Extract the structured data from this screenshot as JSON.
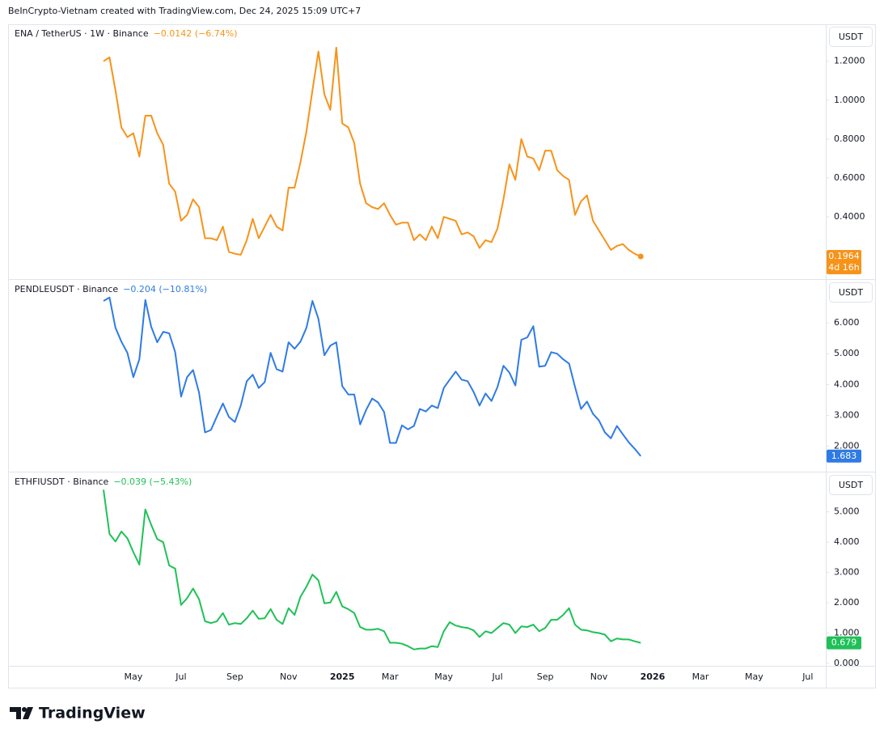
{
  "header": {
    "attribution": "BeInCrypto-Vietnam created with TradingView.com, Dec 24, 2025 15:09 UTC+7"
  },
  "footer": {
    "brand": "TradingView"
  },
  "chart_data": [
    {
      "type": "line",
      "title": "ENA / TetherUS · 1W · Binance",
      "change": "−0.0142 (−6.74%)",
      "unit": "USDT",
      "countdown": "4d 16h",
      "ylim": [
        0.08,
        1.39
      ],
      "yticks": [
        {
          "value": 0.4,
          "label": "0.4000"
        },
        {
          "value": 0.6,
          "label": "0.6000"
        },
        {
          "value": 0.8,
          "label": "0.8000"
        },
        {
          "value": 1.0,
          "label": "1.0000"
        },
        {
          "value": 1.2,
          "label": "1.2000"
        }
      ],
      "categories": [
        null,
        null,
        null,
        null,
        null,
        "May",
        null,
        null,
        null,
        null,
        null,
        null,
        null,
        "Jul",
        null,
        null,
        null,
        null,
        null,
        null,
        null,
        null,
        "Sep",
        null,
        null,
        null,
        null,
        null,
        null,
        null,
        null,
        "Nov",
        null,
        null,
        null,
        null,
        null,
        null,
        null,
        null,
        "2025",
        null,
        null,
        null,
        null,
        null,
        null,
        null,
        "Mar",
        null,
        null,
        null,
        null,
        null,
        null,
        null,
        null,
        "May",
        null,
        null,
        null,
        null,
        null,
        null,
        null,
        null,
        "Jul",
        null,
        null,
        null,
        null,
        null,
        null,
        null,
        "Sep",
        null,
        null,
        null,
        null,
        null,
        null,
        null,
        null,
        "Nov",
        null,
        null,
        null,
        null,
        null,
        null,
        null,
        null,
        "2026",
        null,
        null,
        null,
        null,
        null,
        null,
        null,
        "Mar",
        null,
        null,
        null,
        null,
        null,
        null,
        null,
        null,
        "May",
        null,
        null,
        null,
        null,
        null,
        null,
        null,
        null,
        "Jul",
        null,
        null,
        null
      ],
      "series": [
        {
          "color": "#f7931a",
          "values": [
            1.2,
            1.22,
            1.05,
            0.86,
            0.81,
            0.83,
            0.71,
            0.92,
            0.92,
            0.83,
            0.77,
            0.57,
            0.53,
            0.38,
            0.41,
            0.49,
            0.45,
            0.29,
            0.29,
            0.28,
            0.35,
            0.22,
            0.21,
            0.205,
            0.28,
            0.39,
            0.29,
            0.35,
            0.41,
            0.35,
            0.33,
            0.55,
            0.55,
            0.68,
            0.84,
            1.05,
            1.25,
            1.03,
            0.95,
            1.27,
            0.88,
            0.86,
            0.78,
            0.57,
            0.47,
            0.45,
            0.44,
            0.47,
            0.41,
            0.36,
            0.37,
            0.37,
            0.28,
            0.31,
            0.28,
            0.35,
            0.29,
            0.4,
            0.39,
            0.38,
            0.31,
            0.32,
            0.3,
            0.24,
            0.28,
            0.27,
            0.34,
            0.49,
            0.67,
            0.59,
            0.8,
            0.71,
            0.7,
            0.64,
            0.74,
            0.74,
            0.64,
            0.61,
            0.59,
            0.41,
            0.48,
            0.51,
            0.38,
            0.33,
            0.28,
            0.23,
            0.25,
            0.26,
            0.23,
            0.21,
            0.1964,
            null,
            null,
            null,
            null,
            null,
            null,
            null,
            null,
            null,
            null,
            null,
            null,
            null,
            null,
            null,
            null,
            null,
            null,
            null,
            null,
            null,
            null,
            null,
            null,
            null,
            null,
            null,
            null,
            null,
            null,
            null
          ]
        }
      ]
    },
    {
      "type": "line",
      "title": "PENDLEUSDT · Binance",
      "change": "−0.204 (−10.81%)",
      "unit": "USDT",
      "ylim": [
        1.18,
        7.39
      ],
      "yticks": [
        {
          "value": 2,
          "label": "2.000"
        },
        {
          "value": 3,
          "label": "3.000"
        },
        {
          "value": 4,
          "label": "4.000"
        },
        {
          "value": 5,
          "label": "5.000"
        },
        {
          "value": 6,
          "label": "6.000"
        }
      ],
      "categories": [
        null,
        null,
        null,
        null,
        null,
        "May",
        null,
        null,
        null,
        null,
        null,
        null,
        null,
        "Jul",
        null,
        null,
        null,
        null,
        null,
        null,
        null,
        null,
        "Sep",
        null,
        null,
        null,
        null,
        null,
        null,
        null,
        null,
        "Nov",
        null,
        null,
        null,
        null,
        null,
        null,
        null,
        null,
        "2025",
        null,
        null,
        null,
        null,
        null,
        null,
        null,
        "Mar",
        null,
        null,
        null,
        null,
        null,
        null,
        null,
        null,
        "May",
        null,
        null,
        null,
        null,
        null,
        null,
        null,
        null,
        "Jul",
        null,
        null,
        null,
        null,
        null,
        null,
        null,
        "Sep",
        null,
        null,
        null,
        null,
        null,
        null,
        null,
        null,
        "Nov",
        null,
        null,
        null,
        null,
        null,
        null,
        null,
        null,
        "2026",
        null,
        null,
        null,
        null,
        null,
        null,
        null,
        "Mar",
        null,
        null,
        null,
        null,
        null,
        null,
        null,
        null,
        "May",
        null,
        null,
        null,
        null,
        null,
        null,
        null,
        null,
        "Jul",
        null,
        null,
        null
      ],
      "series": [
        {
          "color": "#2f7be6",
          "values": [
            6.71,
            6.82,
            5.84,
            5.39,
            5.03,
            4.24,
            4.82,
            6.74,
            5.87,
            5.37,
            5.71,
            5.66,
            5.05,
            3.61,
            4.24,
            4.47,
            3.74,
            2.45,
            2.53,
            2.97,
            3.39,
            2.95,
            2.79,
            3.32,
            4.11,
            4.32,
            3.89,
            4.08,
            5.03,
            4.5,
            4.42,
            5.37,
            5.16,
            5.39,
            5.84,
            6.71,
            6.13,
            4.95,
            5.26,
            5.37,
            3.95,
            3.68,
            3.68,
            2.71,
            3.18,
            3.55,
            3.42,
            3.11,
            2.11,
            2.11,
            2.68,
            2.55,
            2.66,
            3.21,
            3.13,
            3.32,
            3.24,
            3.89,
            4.16,
            4.42,
            4.16,
            4.11,
            3.76,
            3.32,
            3.71,
            3.47,
            3.92,
            4.61,
            4.39,
            3.97,
            5.45,
            5.53,
            5.89,
            4.58,
            4.61,
            5.05,
            5.0,
            4.82,
            4.68,
            3.92,
            3.21,
            3.45,
            3.05,
            2.84,
            2.45,
            2.26,
            2.66,
            2.39,
            2.13,
            1.92,
            1.683,
            null,
            null,
            null,
            null,
            null,
            null,
            null,
            null,
            null,
            null,
            null,
            null,
            null,
            null,
            null,
            null,
            null,
            null,
            null,
            null,
            null,
            null,
            null,
            null,
            null,
            null,
            null,
            null,
            null,
            null,
            null
          ]
        }
      ]
    },
    {
      "type": "line",
      "title": "ETHFIUSDT · Binance",
      "change": "−0.039 (−5.43%)",
      "unit": "USDT",
      "ylim": [
        -0.08,
        6.3
      ],
      "yticks": [
        {
          "value": 0,
          "label": "0.000"
        },
        {
          "value": 1,
          "label": "1.000"
        },
        {
          "value": 2,
          "label": "2.000"
        },
        {
          "value": 3,
          "label": "3.000"
        },
        {
          "value": 4,
          "label": "4.000"
        },
        {
          "value": 5,
          "label": "5.000"
        }
      ],
      "categories": [
        null,
        null,
        null,
        null,
        null,
        "May",
        null,
        null,
        null,
        null,
        null,
        null,
        null,
        "Jul",
        null,
        null,
        null,
        null,
        null,
        null,
        null,
        null,
        "Sep",
        null,
        null,
        null,
        null,
        null,
        null,
        null,
        null,
        "Nov",
        null,
        null,
        null,
        null,
        null,
        null,
        null,
        null,
        "2025",
        null,
        null,
        null,
        null,
        null,
        null,
        null,
        "Mar",
        null,
        null,
        null,
        null,
        null,
        null,
        null,
        null,
        "May",
        null,
        null,
        null,
        null,
        null,
        null,
        null,
        null,
        "Jul",
        null,
        null,
        null,
        null,
        null,
        null,
        null,
        "Sep",
        null,
        null,
        null,
        null,
        null,
        null,
        null,
        null,
        "Nov",
        null,
        null,
        null,
        null,
        null,
        null,
        null,
        null,
        "2026",
        null,
        null,
        null,
        null,
        null,
        null,
        null,
        "Mar",
        null,
        null,
        null,
        null,
        null,
        null,
        null,
        null,
        "May",
        null,
        null,
        null,
        null,
        null,
        null,
        null,
        null,
        "Jul",
        null,
        null,
        null
      ],
      "series": [
        {
          "color": "#1fc157",
          "values": [
            5.73,
            4.27,
            4.02,
            4.35,
            4.13,
            3.67,
            3.26,
            5.08,
            4.57,
            4.1,
            4.0,
            3.23,
            3.13,
            1.93,
            2.15,
            2.47,
            2.12,
            1.39,
            1.33,
            1.39,
            1.66,
            1.28,
            1.33,
            1.3,
            1.49,
            1.74,
            1.47,
            1.49,
            1.79,
            1.44,
            1.3,
            1.82,
            1.6,
            2.2,
            2.53,
            2.93,
            2.74,
            1.98,
            2.01,
            2.36,
            1.88,
            1.79,
            1.66,
            1.2,
            1.11,
            1.11,
            1.14,
            1.06,
            0.68,
            0.68,
            0.65,
            0.57,
            0.46,
            0.49,
            0.49,
            0.57,
            0.54,
            1.06,
            1.36,
            1.25,
            1.2,
            1.17,
            1.09,
            0.87,
            1.06,
            1.0,
            1.17,
            1.33,
            1.28,
            1.0,
            1.22,
            1.2,
            1.28,
            1.06,
            1.17,
            1.44,
            1.44,
            1.6,
            1.82,
            1.28,
            1.11,
            1.09,
            1.03,
            1.0,
            0.95,
            0.73,
            0.82,
            0.79,
            0.79,
            0.73,
            0.679,
            null,
            null,
            null,
            null,
            null,
            null,
            null,
            null,
            null,
            null,
            null,
            null,
            null,
            null,
            null,
            null,
            null,
            null,
            null,
            null,
            null,
            null,
            null,
            null,
            null,
            null,
            null,
            null,
            null,
            null,
            null
          ]
        }
      ]
    }
  ]
}
